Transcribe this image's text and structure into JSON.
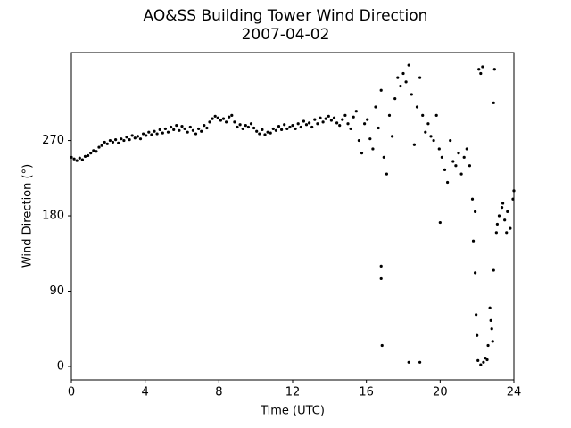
{
  "chart_data": {
    "type": "scatter",
    "title": "AO&SS Building Tower Wind Direction",
    "subtitle": "2007-04-02",
    "x_label": "Time (UTC)",
    "y_label": "Wind Direction (°)",
    "color": "#000000",
    "xlim": [
      0,
      24
    ],
    "xticks": [
      0,
      4,
      8,
      12,
      16,
      20,
      24
    ],
    "ylim": [
      -16,
      375
    ],
    "yticks": [
      0,
      90,
      180,
      270
    ],
    "x": [
      0.0,
      0.15,
      0.3,
      0.45,
      0.6,
      0.75,
      0.9,
      1.05,
      1.2,
      1.35,
      1.5,
      1.65,
      1.8,
      1.95,
      2.1,
      2.25,
      2.4,
      2.55,
      2.7,
      2.85,
      3.0,
      3.15,
      3.3,
      3.45,
      3.6,
      3.75,
      3.9,
      4.05,
      4.2,
      4.35,
      4.5,
      4.65,
      4.8,
      4.95,
      5.1,
      5.25,
      5.4,
      5.55,
      5.7,
      5.85,
      6.0,
      6.15,
      6.3,
      6.45,
      6.6,
      6.75,
      6.9,
      7.05,
      7.2,
      7.35,
      7.5,
      7.65,
      7.8,
      7.95,
      8.1,
      8.25,
      8.4,
      8.55,
      8.7,
      8.85,
      9.0,
      9.15,
      9.3,
      9.45,
      9.6,
      9.75,
      9.9,
      10.05,
      10.2,
      10.35,
      10.5,
      10.65,
      10.8,
      10.95,
      11.1,
      11.25,
      11.4,
      11.55,
      11.7,
      11.85,
      12.0,
      12.15,
      12.3,
      12.45,
      12.6,
      12.75,
      12.9,
      13.05,
      13.2,
      13.35,
      13.5,
      13.65,
      13.8,
      13.95,
      14.1,
      14.25,
      14.4,
      14.55,
      14.7,
      14.85,
      15.0,
      15.15,
      15.3,
      15.45,
      15.6,
      15.75,
      15.9,
      16.05,
      16.2,
      16.35,
      16.5,
      16.65,
      16.8,
      16.95,
      17.1,
      17.25,
      17.4,
      17.55,
      17.7,
      17.85,
      18.0,
      18.15,
      18.3,
      18.45,
      18.6,
      18.75,
      18.9,
      19.05,
      19.2,
      19.35,
      19.5,
      19.65,
      19.8,
      19.95,
      20.1,
      20.25,
      20.4,
      20.55,
      20.7,
      20.85,
      21.0,
      21.15,
      21.3,
      21.45,
      21.6,
      21.75,
      21.9,
      16.8,
      16.8,
      16.85,
      18.3,
      18.9,
      20.0,
      21.8,
      21.9,
      21.95,
      22.0,
      22.05,
      22.1,
      22.2,
      22.3,
      22.2,
      22.35,
      22.45,
      22.55,
      22.6,
      22.7,
      22.75,
      22.8,
      22.85,
      22.9,
      22.9,
      22.95,
      23.05,
      23.2,
      23.35,
      23.5,
      23.65,
      23.8,
      23.95,
      24.0,
      23.1,
      23.4,
      23.6
    ],
    "values": [
      250,
      248,
      246,
      249,
      247,
      251,
      252,
      255,
      258,
      257,
      262,
      264,
      268,
      266,
      270,
      268,
      271,
      267,
      272,
      270,
      274,
      271,
      276,
      273,
      275,
      272,
      278,
      276,
      280,
      277,
      281,
      278,
      283,
      279,
      284,
      280,
      286,
      283,
      288,
      282,
      287,
      284,
      280,
      286,
      282,
      278,
      284,
      281,
      288,
      285,
      292,
      296,
      299,
      297,
      294,
      296,
      292,
      298,
      300,
      292,
      286,
      289,
      284,
      288,
      286,
      290,
      285,
      281,
      278,
      283,
      277,
      280,
      279,
      284,
      282,
      287,
      283,
      289,
      284,
      286,
      288,
      284,
      290,
      286,
      293,
      289,
      291,
      286,
      295,
      290,
      297,
      292,
      296,
      299,
      294,
      297,
      291,
      288,
      295,
      300,
      290,
      284,
      298,
      305,
      270,
      255,
      290,
      295,
      272,
      260,
      310,
      285,
      330,
      250,
      230,
      300,
      275,
      320,
      345,
      335,
      350,
      340,
      360,
      325,
      265,
      310,
      345,
      300,
      280,
      290,
      275,
      270,
      300,
      260,
      250,
      235,
      220,
      270,
      245,
      240,
      255,
      230,
      250,
      260,
      240,
      200,
      185,
      120,
      105,
      25,
      5,
      5,
      172,
      150,
      112,
      62,
      37,
      7,
      355,
      350,
      358,
      2,
      5,
      10,
      8,
      25,
      70,
      55,
      45,
      30,
      115,
      315,
      355,
      160,
      180,
      190,
      175,
      185,
      165,
      200,
      210,
      170,
      195,
      160
    ]
  }
}
